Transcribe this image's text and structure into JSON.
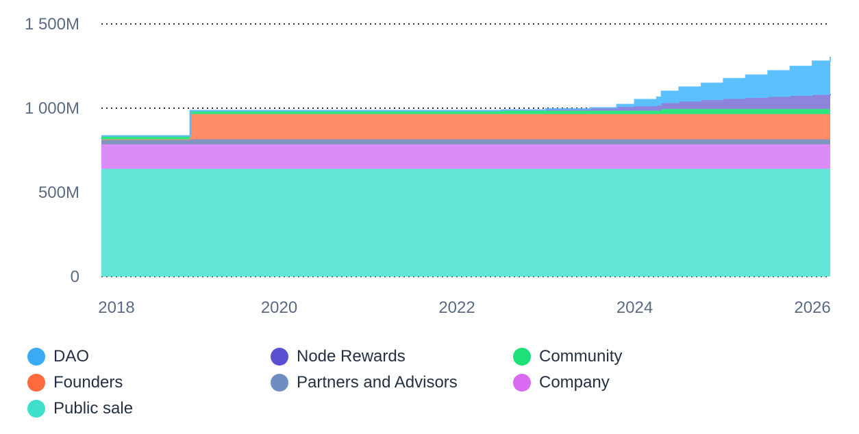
{
  "chart_data": {
    "type": "area",
    "stacked": true,
    "x_axis": {
      "type": "time",
      "ticks": [
        "2018",
        "2020",
        "2022",
        "2024",
        "2026"
      ],
      "range": [
        2018.0,
        2026.2
      ]
    },
    "y_axis": {
      "ticks": [
        {
          "value": 0,
          "label": "0"
        },
        {
          "value": 500,
          "label": "500M"
        },
        {
          "value": 1000,
          "label": "1 000M"
        },
        {
          "value": 1500,
          "label": "1 500M"
        }
      ],
      "range": [
        0,
        1500
      ],
      "unit": "M"
    },
    "grid": "horizontal-dotted",
    "legend_position": "bottom",
    "x": [
      2018.0,
      2019.0,
      2020.0,
      2021.0,
      2022.0,
      2022.5,
      2023.0,
      2023.5,
      2023.8,
      2024.0,
      2024.25,
      2024.3,
      2024.5,
      2024.75,
      2025.0,
      2025.25,
      2025.5,
      2025.75,
      2026.0,
      2026.2
    ],
    "series": [
      {
        "name": "Public sale",
        "color": "#63e6d7",
        "values": [
          640,
          640,
          640,
          640,
          640,
          640,
          640,
          640,
          640,
          640,
          640,
          640,
          640,
          640,
          640,
          640,
          640,
          640,
          640,
          640
        ]
      },
      {
        "name": "Company",
        "color": "#dc8cf7",
        "values": [
          145,
          145,
          145,
          145,
          145,
          145,
          145,
          145,
          145,
          145,
          145,
          145,
          145,
          145,
          145,
          145,
          145,
          145,
          145,
          145
        ]
      },
      {
        "name": "Partners and Advisors",
        "color": "#8096bf",
        "values": [
          30,
          30,
          30,
          30,
          30,
          30,
          30,
          30,
          30,
          30,
          30,
          30,
          30,
          30,
          30,
          30,
          30,
          30,
          30,
          30
        ]
      },
      {
        "name": "Founders",
        "color": "#ff8c66",
        "values": [
          0,
          150,
          150,
          150,
          150,
          150,
          150,
          150,
          150,
          150,
          150,
          150,
          150,
          150,
          150,
          150,
          150,
          150,
          150,
          150
        ]
      },
      {
        "name": "Community",
        "color": "#2de87f",
        "values": [
          20,
          20,
          20,
          20,
          20,
          20,
          20,
          20,
          20,
          20,
          20,
          30,
          30,
          30,
          30,
          30,
          30,
          30,
          30,
          30
        ]
      },
      {
        "name": "Node Rewards",
        "color": "#8f84dc",
        "values": [
          0,
          0,
          0,
          0,
          0,
          4,
          10,
          17,
          22,
          26,
          30,
          35,
          45,
          53,
          60,
          66,
          72,
          78,
          84,
          90
        ]
      },
      {
        "name": "DAO",
        "color": "#5bc0fb",
        "values": [
          0,
          0,
          0,
          0,
          0,
          0,
          0,
          0,
          15,
          40,
          50,
          70,
          85,
          100,
          120,
          135,
          155,
          175,
          200,
          220
        ]
      }
    ]
  },
  "legend": {
    "items": [
      {
        "label": "DAO",
        "color": "#3aaaf5"
      },
      {
        "label": "Node Rewards",
        "color": "#5a4fd1"
      },
      {
        "label": "Community",
        "color": "#1ee07a"
      },
      {
        "label": "Founders",
        "color": "#ff6a3d"
      },
      {
        "label": "Partners and Advisors",
        "color": "#6e8ec2"
      },
      {
        "label": "Company",
        "color": "#d86bf2"
      },
      {
        "label": "Public sale",
        "color": "#3ee0cc"
      }
    ]
  }
}
